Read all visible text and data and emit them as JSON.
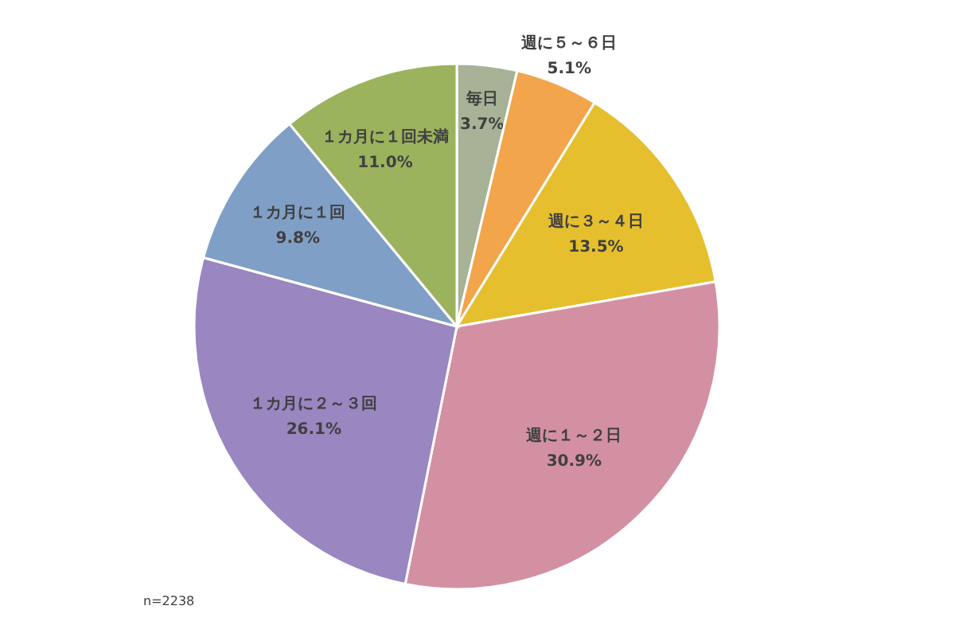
{
  "chart_data": {
    "type": "pie",
    "categories": [
      "毎日",
      "週に５～６日",
      "週に３～４日",
      "週に１～２日",
      "１カ月に２～３回",
      "１カ月に１回",
      "１カ月に１回未満"
    ],
    "values": [
      3.7,
      5.1,
      13.5,
      30.9,
      26.1,
      9.8,
      11.0
    ],
    "value_labels": [
      "3.7%",
      "5.1%",
      "13.5%",
      "30.9%",
      "26.1%",
      "9.8%",
      "11.0%"
    ],
    "colors": [
      "#a7b296",
      "#f2a54b",
      "#e6bf2e",
      "#d490a3",
      "#9a86c1",
      "#7f9fc6",
      "#9cb35e"
    ],
    "annotations": [
      "n=2238"
    ]
  }
}
